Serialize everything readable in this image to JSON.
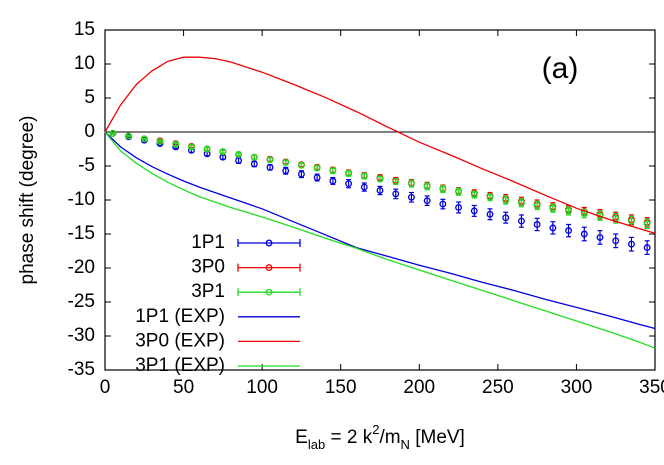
{
  "chart_data": {
    "type": "line",
    "y_label": "phase shift (degree)",
    "x_label": [
      {
        "text": "E"
      },
      {
        "text": "lab",
        "shift": "sub"
      },
      {
        "text": " = 2 k"
      },
      {
        "text": "2",
        "shift": "sup"
      },
      {
        "text": "/m"
      },
      {
        "text": "N",
        "shift": "sub"
      },
      {
        "text": " [MeV]"
      }
    ],
    "annotation": "(a)",
    "xlim": [
      0,
      350
    ],
    "xticks": [
      0,
      50,
      100,
      150,
      200,
      250,
      300,
      350
    ],
    "ylim": [
      -35,
      15
    ],
    "yticks": [
      -35,
      -30,
      -25,
      -20,
      -15,
      -10,
      -5,
      0,
      5,
      10,
      15
    ],
    "zero_line": true,
    "legend": "bottom-left",
    "series": [
      {
        "name": "1P1",
        "style": "points",
        "color": "#0000dd",
        "x": [
          5,
          15,
          25,
          35,
          45,
          55,
          65,
          75,
          85,
          95,
          105,
          115,
          125,
          135,
          145,
          155,
          165,
          175,
          185,
          195,
          205,
          215,
          225,
          235,
          245,
          255,
          265,
          275,
          285,
          295,
          305,
          315,
          325,
          335,
          345
        ],
        "values": [
          -0.2,
          -0.7,
          -1.2,
          -1.7,
          -2.2,
          -2.7,
          -3.2,
          -3.7,
          -4.2,
          -4.7,
          -5.2,
          -5.7,
          -6.2,
          -6.7,
          -7.2,
          -7.6,
          -8.1,
          -8.6,
          -9.1,
          -9.6,
          -10.1,
          -10.6,
          -11.1,
          -11.6,
          -12.1,
          -12.6,
          -13.1,
          -13.6,
          -14.1,
          -14.5,
          -15.0,
          -15.5,
          -16.0,
          -16.5,
          -17.0
        ],
        "errors": [
          0.1,
          0.1,
          0.2,
          0.2,
          0.2,
          0.3,
          0.3,
          0.3,
          0.4,
          0.4,
          0.4,
          0.5,
          0.5,
          0.5,
          0.5,
          0.6,
          0.6,
          0.6,
          0.7,
          0.7,
          0.7,
          0.7,
          0.8,
          0.8,
          0.8,
          0.8,
          0.9,
          0.9,
          0.9,
          0.9,
          1.0,
          1.0,
          1.0,
          1.0,
          1.0
        ]
      },
      {
        "name": "3P0",
        "style": "points",
        "color": "#ee0000",
        "x": [
          5,
          15,
          25,
          35,
          45,
          55,
          65,
          75,
          85,
          95,
          105,
          115,
          125,
          135,
          145,
          155,
          165,
          175,
          185,
          195,
          205,
          215,
          225,
          235,
          245,
          255,
          265,
          275,
          285,
          295,
          305,
          315,
          325,
          335,
          345
        ],
        "values": [
          -0.2,
          -0.6,
          -1.0,
          -1.3,
          -1.7,
          -2.1,
          -2.5,
          -2.9,
          -3.3,
          -3.7,
          -4.0,
          -4.4,
          -4.8,
          -5.2,
          -5.6,
          -6.0,
          -6.4,
          -6.7,
          -7.1,
          -7.5,
          -7.9,
          -8.3,
          -8.7,
          -9.0,
          -9.4,
          -9.8,
          -10.2,
          -10.6,
          -11.0,
          -11.4,
          -11.7,
          -12.1,
          -12.5,
          -12.9,
          -13.3
        ],
        "errors": [
          0.1,
          0.1,
          0.1,
          0.1,
          0.2,
          0.2,
          0.2,
          0.2,
          0.2,
          0.3,
          0.3,
          0.3,
          0.3,
          0.3,
          0.4,
          0.4,
          0.4,
          0.4,
          0.4,
          0.5,
          0.5,
          0.5,
          0.5,
          0.5,
          0.5,
          0.6,
          0.6,
          0.6,
          0.6,
          0.6,
          0.6,
          0.7,
          0.7,
          0.7,
          0.7
        ]
      },
      {
        "name": "3P1",
        "style": "points",
        "color": "#22dd22",
        "x": [
          5,
          15,
          25,
          35,
          45,
          55,
          65,
          75,
          85,
          95,
          105,
          115,
          125,
          135,
          145,
          155,
          165,
          175,
          185,
          195,
          205,
          215,
          225,
          235,
          245,
          255,
          265,
          275,
          285,
          295,
          305,
          315,
          325,
          335,
          345
        ],
        "values": [
          -0.2,
          -0.6,
          -1.0,
          -1.4,
          -1.8,
          -2.2,
          -2.5,
          -2.9,
          -3.3,
          -3.7,
          -4.1,
          -4.5,
          -4.9,
          -5.3,
          -5.7,
          -6.1,
          -6.5,
          -6.9,
          -7.3,
          -7.6,
          -8.0,
          -8.4,
          -8.8,
          -9.2,
          -9.6,
          -10.0,
          -10.4,
          -10.8,
          -11.2,
          -11.6,
          -12.0,
          -12.3,
          -12.7,
          -13.1,
          -13.5
        ],
        "errors": [
          0.1,
          0.1,
          0.1,
          0.1,
          0.2,
          0.2,
          0.2,
          0.2,
          0.2,
          0.3,
          0.3,
          0.3,
          0.3,
          0.3,
          0.4,
          0.4,
          0.4,
          0.4,
          0.4,
          0.5,
          0.5,
          0.5,
          0.5,
          0.5,
          0.5,
          0.6,
          0.6,
          0.6,
          0.6,
          0.6,
          0.6,
          0.7,
          0.7,
          0.7,
          0.7
        ]
      },
      {
        "name": "1P1 (EXP)",
        "style": "line",
        "color": "#0000dd",
        "x": [
          0,
          10,
          20,
          30,
          40,
          50,
          60,
          80,
          100,
          120,
          140,
          160,
          180,
          200,
          220,
          240,
          260,
          280,
          300,
          320,
          340,
          350
        ],
        "values": [
          0,
          -2.2,
          -3.8,
          -5.1,
          -6.2,
          -7.2,
          -8.1,
          -9.7,
          -11.3,
          -13.2,
          -15.1,
          -17.0,
          -18.3,
          -19.6,
          -20.8,
          -22.1,
          -23.3,
          -24.6,
          -25.8,
          -27.0,
          -28.3,
          -28.9
        ]
      },
      {
        "name": "3P0 (EXP)",
        "style": "line",
        "color": "#ee0000",
        "x": [
          0,
          10,
          20,
          30,
          40,
          50,
          60,
          70,
          80,
          100,
          120,
          140,
          160,
          180,
          200,
          220,
          240,
          260,
          280,
          300,
          320,
          340,
          350
        ],
        "values": [
          0,
          4,
          7,
          9,
          10.4,
          11,
          11,
          10.8,
          10.3,
          8.8,
          7.0,
          5.1,
          3.0,
          0.7,
          -1.5,
          -3.4,
          -5.4,
          -7.3,
          -9.3,
          -11.2,
          -12.8,
          -14.2,
          -14.9
        ]
      },
      {
        "name": "3P1 (EXP)",
        "style": "line",
        "color": "#22dd22",
        "x": [
          0,
          10,
          20,
          30,
          40,
          50,
          60,
          80,
          100,
          120,
          140,
          160,
          180,
          200,
          220,
          240,
          260,
          280,
          300,
          320,
          340,
          350
        ],
        "values": [
          0,
          -2.8,
          -4.6,
          -6.1,
          -7.4,
          -8.5,
          -9.5,
          -11.1,
          -12.5,
          -14.0,
          -15.6,
          -17.1,
          -18.8,
          -20.3,
          -21.8,
          -23.3,
          -24.8,
          -26.3,
          -27.8,
          -29.3,
          -30.9,
          -31.8
        ]
      }
    ]
  }
}
